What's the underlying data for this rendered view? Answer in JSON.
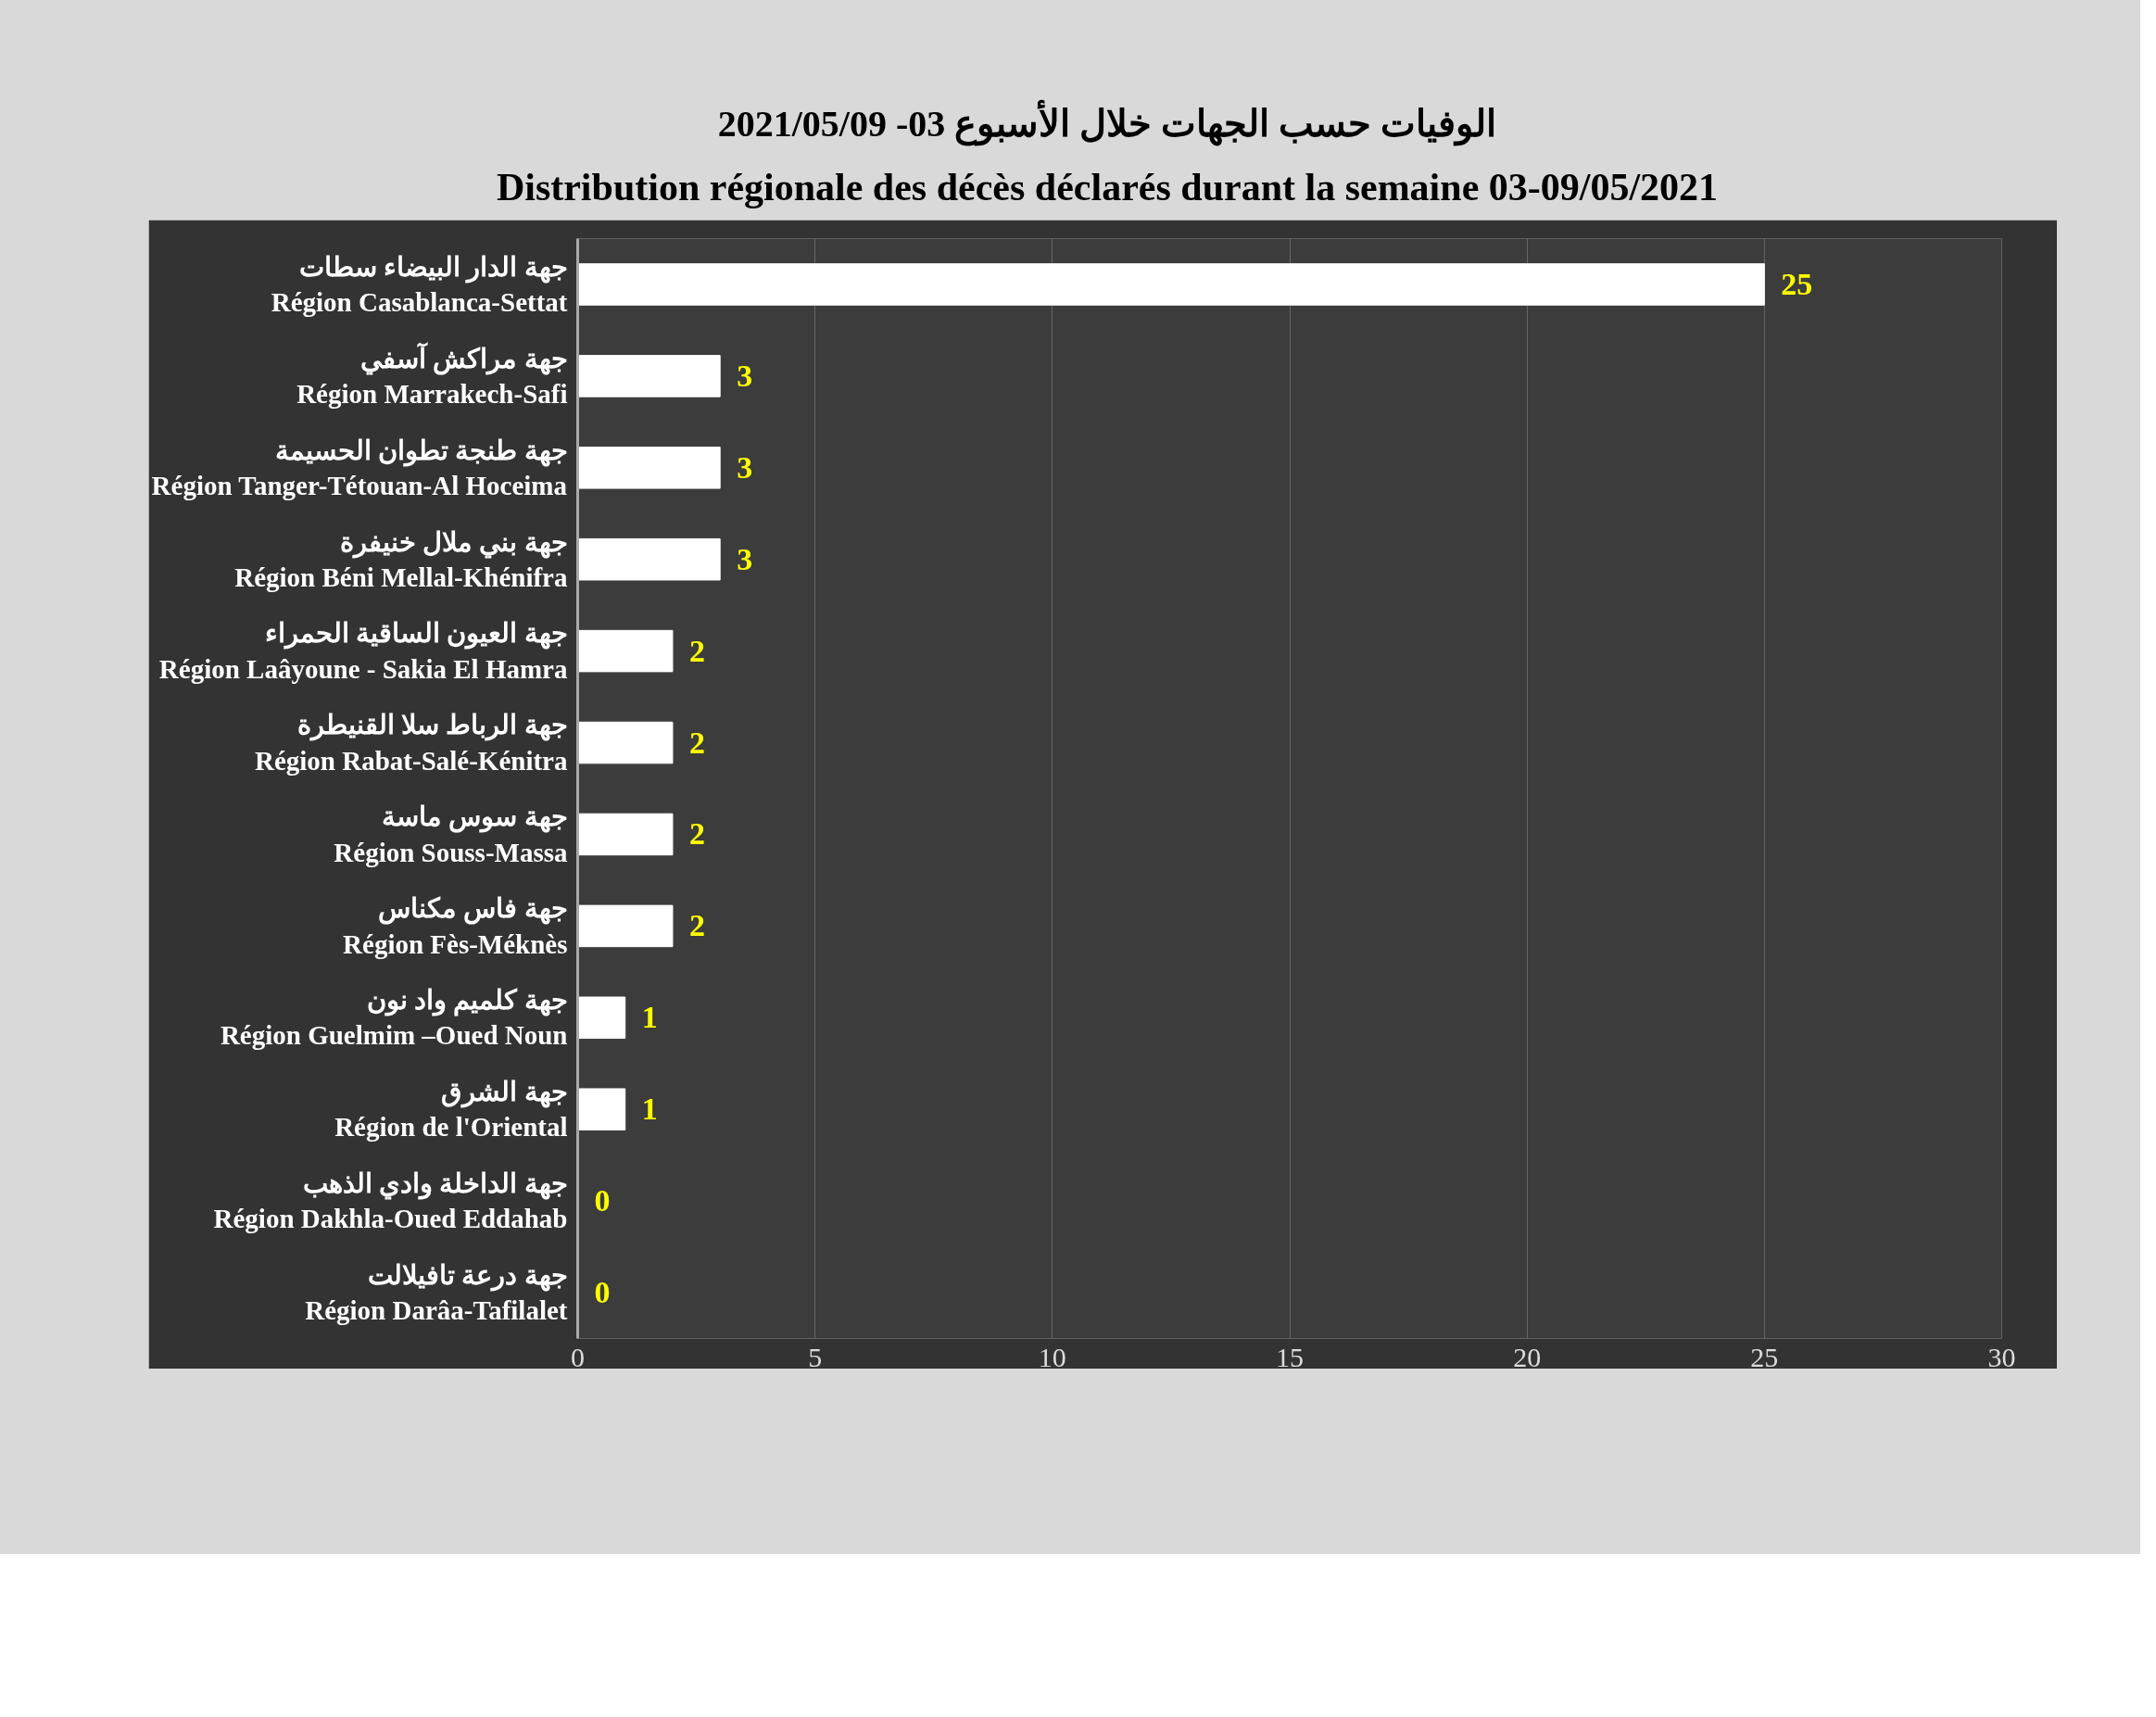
{
  "chart_data": {
    "type": "bar",
    "orientation": "horizontal",
    "title": "الوفيات حسب الجهات خلال الأسبوع 03- 2021/05/09",
    "subtitle": "Distribution régionale des décès déclarés durant la semaine 03-09/05/2021",
    "categories": [
      "جهة الدار البيضاء سطات\nRégion Casablanca-Settat",
      "جهة مراكش آسفي\nRégion Marrakech-Safi",
      "جهة طنجة تطوان الحسيمة\nRégion Tanger-Tétouan-Al Hoceima",
      "جهة بني ملال خنيفرة\nRégion Béni Mellal-Khénifra",
      "جهة العيون الساقية الحمراء\nRégion Laâyoune - Sakia El Hamra",
      "جهة الرباط سلا القنيطرة\nRégion Rabat-Salé-Kénitra",
      "جهة سوس ماسة\nRégion Souss-Massa",
      "جهة فاس مكناس\nRégion Fès-Méknès",
      "جهة كلميم واد نون\nRégion Guelmim –Oued Noun",
      "جهة الشرق\nRégion de l'Oriental",
      "جهة الداخلة وادي الذهب\nRégion Dakhla-Oued Eddahab",
      "جهة درعة تافيلالت\nRégion Darâa-Tafilalet"
    ],
    "values": [
      25,
      3,
      3,
      3,
      2,
      2,
      2,
      2,
      1,
      1,
      0,
      0
    ],
    "color": "#ffffff",
    "xlim": [
      0,
      30
    ],
    "xticks": [
      0,
      5,
      10,
      15,
      20,
      25,
      30
    ],
    "grid": "x",
    "data_labels": true
  }
}
